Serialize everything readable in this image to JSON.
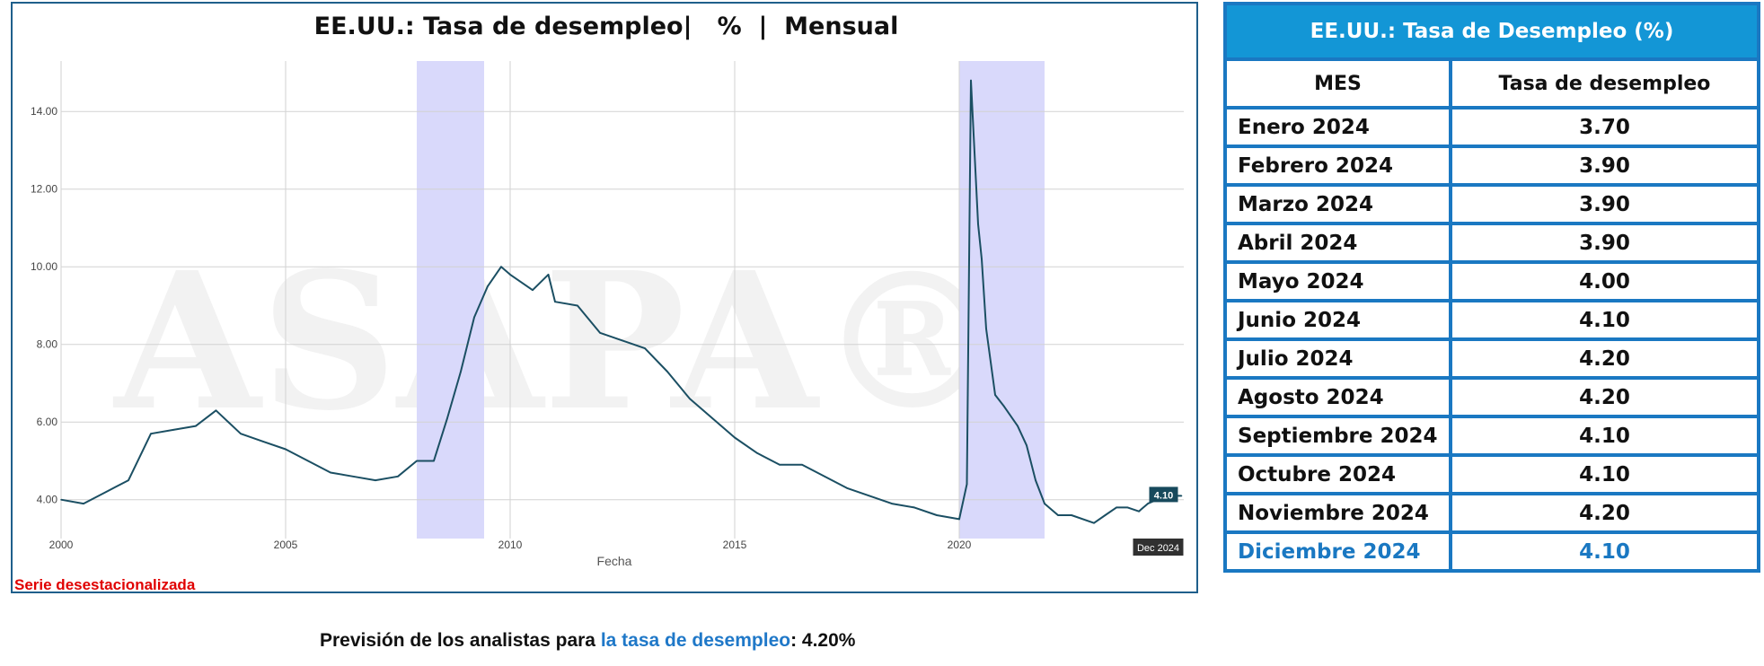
{
  "chart_data": {
    "type": "line",
    "title": "EE.UU.: Tasa de desempleo|   %  |  Mensual",
    "xlabel": "Fecha",
    "ylabel": "",
    "x_range": [
      2000.0,
      2025.0
    ],
    "ylim": [
      3.0,
      15.3
    ],
    "x_tick_labels": [
      "2000",
      "2005",
      "2010",
      "2015",
      "2020"
    ],
    "x_ticks": [
      2000,
      2005,
      2010,
      2015,
      2020
    ],
    "y_tick_labels": [
      "4.00",
      "6.00",
      "8.00",
      "10.00",
      "12.00",
      "14.00"
    ],
    "y_ticks": [
      4,
      6,
      8,
      10,
      12,
      14
    ],
    "grid": true,
    "recession_bands": [
      [
        2007.92,
        2009.42
      ],
      [
        2020.0,
        2021.9
      ]
    ],
    "last_value_label": "4.10",
    "last_date_label": "Dec 2024",
    "watermark": "ASAPA®",
    "series": [
      {
        "color": "#1b4f63",
        "points": [
          [
            2000.0,
            4.0
          ],
          [
            2000.5,
            3.9
          ],
          [
            2001.0,
            4.2
          ],
          [
            2001.5,
            4.5
          ],
          [
            2002.0,
            5.7
          ],
          [
            2002.5,
            5.8
          ],
          [
            2003.0,
            5.9
          ],
          [
            2003.45,
            6.3
          ],
          [
            2004.0,
            5.7
          ],
          [
            2004.5,
            5.5
          ],
          [
            2005.0,
            5.3
          ],
          [
            2005.5,
            5.0
          ],
          [
            2006.0,
            4.7
          ],
          [
            2006.5,
            4.6
          ],
          [
            2007.0,
            4.5
          ],
          [
            2007.5,
            4.6
          ],
          [
            2007.92,
            5.0
          ],
          [
            2008.3,
            5.0
          ],
          [
            2008.6,
            6.1
          ],
          [
            2008.9,
            7.3
          ],
          [
            2009.2,
            8.7
          ],
          [
            2009.5,
            9.5
          ],
          [
            2009.8,
            10.0
          ],
          [
            2010.0,
            9.8
          ],
          [
            2010.5,
            9.4
          ],
          [
            2010.85,
            9.8
          ],
          [
            2011.0,
            9.1
          ],
          [
            2011.5,
            9.0
          ],
          [
            2012.0,
            8.3
          ],
          [
            2012.5,
            8.1
          ],
          [
            2013.0,
            7.9
          ],
          [
            2013.5,
            7.3
          ],
          [
            2014.0,
            6.6
          ],
          [
            2014.5,
            6.1
          ],
          [
            2015.0,
            5.6
          ],
          [
            2015.5,
            5.2
          ],
          [
            2016.0,
            4.9
          ],
          [
            2016.5,
            4.9
          ],
          [
            2017.0,
            4.6
          ],
          [
            2017.5,
            4.3
          ],
          [
            2018.0,
            4.1
          ],
          [
            2018.5,
            3.9
          ],
          [
            2019.0,
            3.8
          ],
          [
            2019.5,
            3.6
          ],
          [
            2020.0,
            3.5
          ],
          [
            2020.17,
            4.4
          ],
          [
            2020.26,
            14.8
          ],
          [
            2020.42,
            11.1
          ],
          [
            2020.5,
            10.2
          ],
          [
            2020.6,
            8.4
          ],
          [
            2020.8,
            6.7
          ],
          [
            2021.0,
            6.4
          ],
          [
            2021.3,
            5.9
          ],
          [
            2021.5,
            5.4
          ],
          [
            2021.7,
            4.5
          ],
          [
            2021.9,
            3.9
          ],
          [
            2022.2,
            3.6
          ],
          [
            2022.5,
            3.6
          ],
          [
            2023.0,
            3.4
          ],
          [
            2023.25,
            3.6
          ],
          [
            2023.5,
            3.8
          ],
          [
            2023.75,
            3.8
          ],
          [
            2024.0,
            3.7
          ],
          [
            2024.2,
            3.9
          ],
          [
            2024.4,
            4.0
          ],
          [
            2024.55,
            4.2
          ],
          [
            2024.75,
            4.1
          ],
          [
            2024.95,
            4.1
          ]
        ]
      }
    ]
  },
  "series_note": "Serie desestacionalizada",
  "forecast": {
    "prefix": "Previsión de los analistas para ",
    "highlight": "la tasa de desempleo",
    "suffix": ": 4.20%"
  },
  "table": {
    "title": "EE.UU.: Tasa de Desempleo (%)",
    "col_mes": "MES",
    "col_tasa": "Tasa de desempleo",
    "rows": [
      {
        "mes": "Enero 2024",
        "tasa": "3.70"
      },
      {
        "mes": "Febrero 2024",
        "tasa": "3.90"
      },
      {
        "mes": "Marzo 2024",
        "tasa": "3.90"
      },
      {
        "mes": "Abril 2024",
        "tasa": "3.90"
      },
      {
        "mes": "Mayo 2024",
        "tasa": "4.00"
      },
      {
        "mes": "Junio 2024",
        "tasa": "4.10"
      },
      {
        "mes": "Julio 2024",
        "tasa": "4.20"
      },
      {
        "mes": "Agosto 2024",
        "tasa": "4.20"
      },
      {
        "mes": "Septiembre 2024",
        "tasa": "4.10"
      },
      {
        "mes": "Octubre 2024",
        "tasa": "4.10"
      },
      {
        "mes": "Noviembre 2024",
        "tasa": "4.20"
      },
      {
        "mes": "Diciembre 2024",
        "tasa": "4.10"
      }
    ]
  }
}
